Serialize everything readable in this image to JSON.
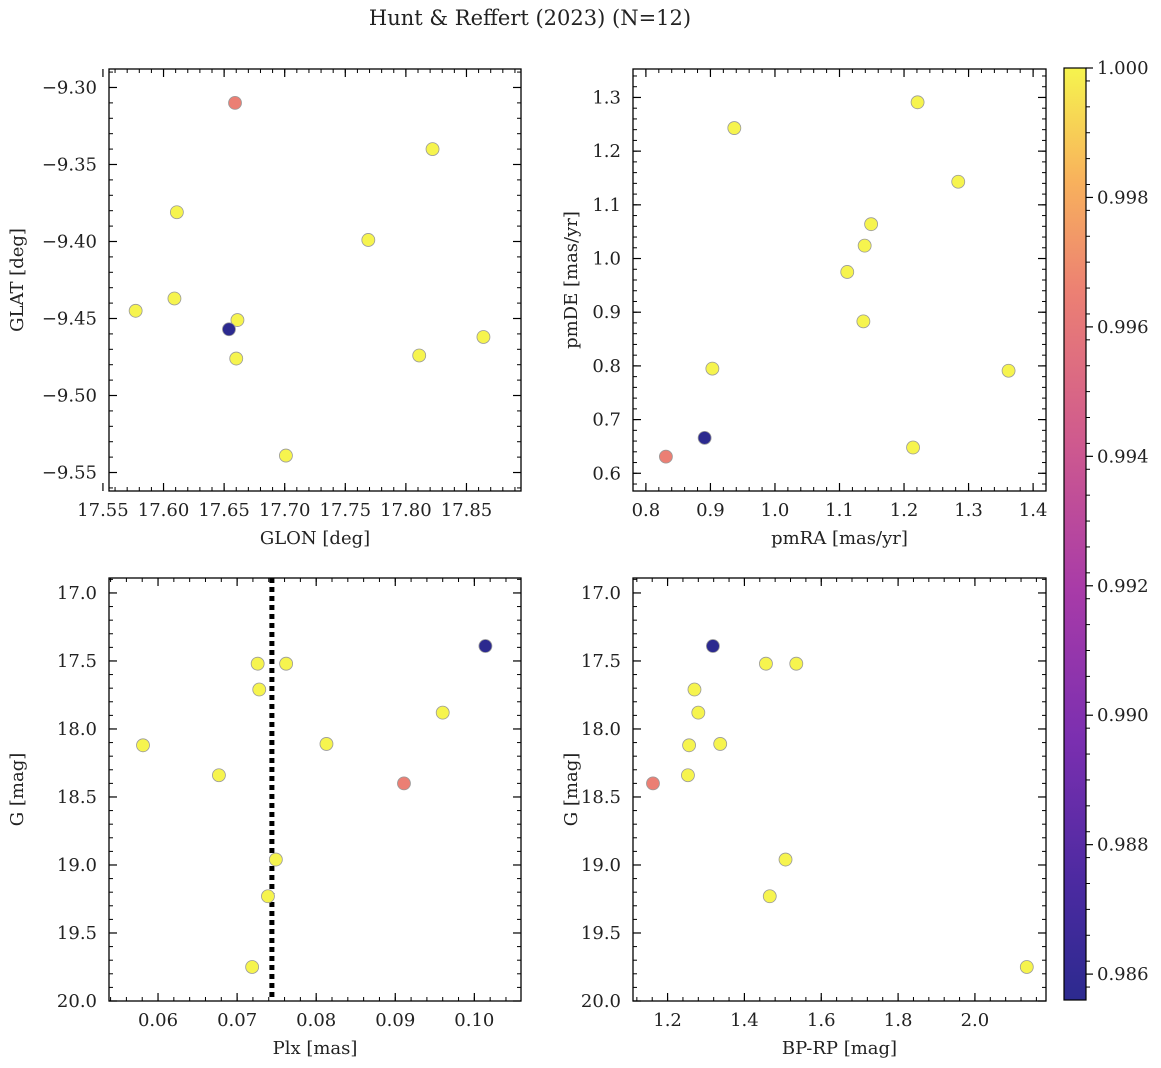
{
  "figure": {
    "title": "Hunt & Reffert (2023) (N=12)"
  },
  "colorbar": {
    "ticks": [
      0.986,
      0.988,
      0.99,
      0.992,
      0.994,
      0.996,
      0.998,
      1.0
    ],
    "tick_labels": [
      "0.986",
      "0.988",
      "0.990",
      "0.992",
      "0.994",
      "0.996",
      "0.998",
      "1.000"
    ],
    "range": [
      0.9856,
      1.0
    ],
    "colormap": "plasma"
  },
  "chart_data": [
    {
      "type": "scatter",
      "xlabel": "GLON [deg]",
      "ylabel": "GLAT [deg]",
      "xlim": [
        17.555,
        17.895
      ],
      "ylim": [
        -9.562,
        -9.288
      ],
      "xticks": [
        17.55,
        17.6,
        17.65,
        17.7,
        17.75,
        17.8,
        17.85
      ],
      "xtick_labels": [
        "17.55",
        "17.60",
        "17.65",
        "17.70",
        "17.75",
        "17.80",
        "17.85"
      ],
      "yticks": [
        -9.3,
        -9.35,
        -9.4,
        -9.45,
        -9.5,
        -9.55
      ],
      "ytick_labels": [
        "−9.30",
        "−9.35",
        "−9.40",
        "−9.45",
        "−9.50",
        "−9.55"
      ],
      "points": [
        {
          "x": 17.577,
          "y": -9.445,
          "c": 1.0
        },
        {
          "x": 17.609,
          "y": -9.437,
          "c": 1.0
        },
        {
          "x": 17.611,
          "y": -9.381,
          "c": 1.0
        },
        {
          "x": 17.659,
          "y": -9.31,
          "c": 0.9965
        },
        {
          "x": 17.661,
          "y": -9.451,
          "c": 1.0
        },
        {
          "x": 17.66,
          "y": -9.476,
          "c": 1.0
        },
        {
          "x": 17.701,
          "y": -9.539,
          "c": 1.0
        },
        {
          "x": 17.769,
          "y": -9.399,
          "c": 1.0
        },
        {
          "x": 17.811,
          "y": -9.474,
          "c": 1.0
        },
        {
          "x": 17.822,
          "y": -9.34,
          "c": 1.0
        },
        {
          "x": 17.864,
          "y": -9.462,
          "c": 1.0
        },
        {
          "x": 17.654,
          "y": -9.457,
          "c": 0.9856
        }
      ]
    },
    {
      "type": "scatter",
      "xlabel": "pmRA [mas/yr]",
      "ylabel": "pmDE [mas/yr]",
      "xlim": [
        0.78,
        1.42
      ],
      "ylim": [
        0.567,
        1.353
      ],
      "xticks": [
        0.8,
        0.9,
        1.0,
        1.1,
        1.2,
        1.3,
        1.4
      ],
      "xtick_labels": [
        "0.8",
        "0.9",
        "1.0",
        "1.1",
        "1.2",
        "1.3",
        "1.4"
      ],
      "yticks": [
        0.6,
        0.7,
        0.8,
        0.9,
        1.0,
        1.1,
        1.2,
        1.3
      ],
      "ytick_labels": [
        "0.6",
        "0.7",
        "0.8",
        "0.9",
        "1.0",
        "1.1",
        "1.2",
        "1.3"
      ],
      "points": [
        {
          "x": 0.831,
          "y": 0.631,
          "c": 0.9965
        },
        {
          "x": 0.891,
          "y": 0.666,
          "c": 0.9856
        },
        {
          "x": 0.903,
          "y": 0.795,
          "c": 1.0
        },
        {
          "x": 0.937,
          "y": 1.243,
          "c": 1.0
        },
        {
          "x": 1.112,
          "y": 0.975,
          "c": 1.0
        },
        {
          "x": 1.137,
          "y": 0.883,
          "c": 1.0
        },
        {
          "x": 1.139,
          "y": 1.024,
          "c": 1.0
        },
        {
          "x": 1.149,
          "y": 1.064,
          "c": 1.0
        },
        {
          "x": 1.214,
          "y": 0.648,
          "c": 1.0
        },
        {
          "x": 1.221,
          "y": 1.291,
          "c": 1.0
        },
        {
          "x": 1.284,
          "y": 1.143,
          "c": 1.0
        },
        {
          "x": 1.362,
          "y": 0.791,
          "c": 1.0
        }
      ]
    },
    {
      "type": "scatter",
      "xlabel": "Plx [mas]",
      "ylabel": "G [mag]",
      "xlim": [
        0.0538,
        0.1059
      ],
      "ylim": [
        20.0,
        16.89
      ],
      "xticks": [
        0.06,
        0.07,
        0.08,
        0.09,
        0.1
      ],
      "xtick_labels": [
        "0.06",
        "0.07",
        "0.08",
        "0.09",
        "0.10"
      ],
      "yticks": [
        17.0,
        17.5,
        18.0,
        18.5,
        19.0,
        19.5,
        20.0
      ],
      "ytick_labels": [
        "17.0",
        "17.5",
        "18.0",
        "18.5",
        "19.0",
        "19.5",
        "20.0"
      ],
      "vline": {
        "x": 0.0744
      },
      "points": [
        {
          "x": 0.0581,
          "y": 18.12,
          "c": 1.0
        },
        {
          "x": 0.0677,
          "y": 18.34,
          "c": 1.0
        },
        {
          "x": 0.0719,
          "y": 19.75,
          "c": 1.0
        },
        {
          "x": 0.0726,
          "y": 17.52,
          "c": 1.0
        },
        {
          "x": 0.0728,
          "y": 17.71,
          "c": 1.0
        },
        {
          "x": 0.0739,
          "y": 19.23,
          "c": 1.0
        },
        {
          "x": 0.0749,
          "y": 18.96,
          "c": 1.0
        },
        {
          "x": 0.0762,
          "y": 17.52,
          "c": 1.0
        },
        {
          "x": 0.0813,
          "y": 18.11,
          "c": 1.0
        },
        {
          "x": 0.0911,
          "y": 18.4,
          "c": 0.9965
        },
        {
          "x": 0.096,
          "y": 17.88,
          "c": 1.0
        },
        {
          "x": 0.1014,
          "y": 17.39,
          "c": 0.9856
        }
      ]
    },
    {
      "type": "scatter",
      "xlabel": "BP-RP [mag]",
      "ylabel": "G [mag]",
      "xlim": [
        1.11,
        2.185
      ],
      "ylim": [
        20.0,
        16.89
      ],
      "xticks": [
        1.2,
        1.4,
        1.6,
        1.8,
        2.0
      ],
      "xtick_labels": [
        "1.2",
        "1.4",
        "1.6",
        "1.8",
        "2.0"
      ],
      "yticks": [
        17.0,
        17.5,
        18.0,
        18.5,
        19.0,
        19.5,
        20.0
      ],
      "ytick_labels": [
        "17.0",
        "17.5",
        "18.0",
        "18.5",
        "19.0",
        "19.5",
        "20.0"
      ],
      "points": [
        {
          "x": 1.162,
          "y": 18.4,
          "c": 0.9965
        },
        {
          "x": 1.253,
          "y": 18.34,
          "c": 1.0
        },
        {
          "x": 1.256,
          "y": 18.12,
          "c": 1.0
        },
        {
          "x": 1.27,
          "y": 17.71,
          "c": 1.0
        },
        {
          "x": 1.28,
          "y": 17.88,
          "c": 1.0
        },
        {
          "x": 1.318,
          "y": 17.39,
          "c": 0.9856
        },
        {
          "x": 1.337,
          "y": 18.11,
          "c": 1.0
        },
        {
          "x": 1.456,
          "y": 17.52,
          "c": 1.0
        },
        {
          "x": 1.466,
          "y": 19.23,
          "c": 1.0
        },
        {
          "x": 1.507,
          "y": 18.96,
          "c": 1.0
        },
        {
          "x": 1.535,
          "y": 17.52,
          "c": 1.0
        },
        {
          "x": 2.135,
          "y": 19.75,
          "c": 1.0
        }
      ]
    }
  ]
}
